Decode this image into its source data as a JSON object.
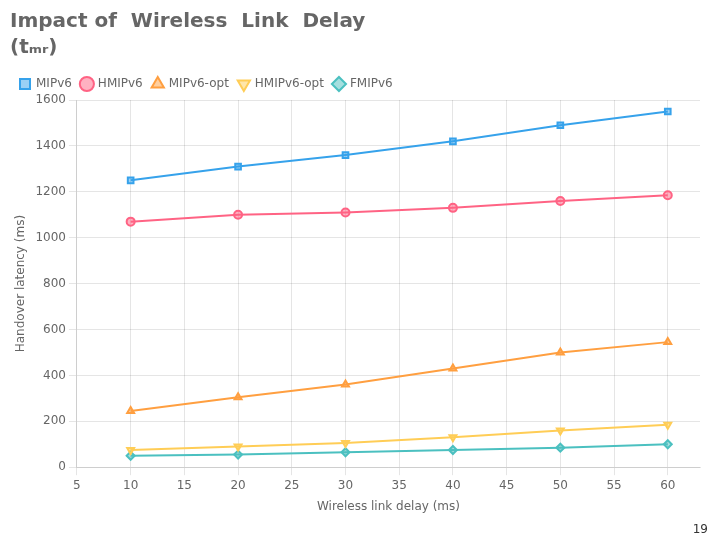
{
  "chart_data": {
    "type": "line",
    "title": "Impact of  Wireless  Link  Delay",
    "subtitle": "(tₘᵣ)",
    "xlabel": "Wireless link delay (ms)",
    "ylabel": "Handover latency (ms)",
    "x": [
      10,
      20,
      30,
      40,
      50,
      60
    ],
    "series": [
      {
        "name": "MIPv6",
        "values": [
          1250,
          1310,
          1360,
          1420,
          1490,
          1550
        ],
        "marker": "square"
      },
      {
        "name": "HMIPv6",
        "values": [
          1070,
          1100,
          1110,
          1130,
          1160,
          1185
        ],
        "marker": "circle"
      },
      {
        "name": "MIPv6-opt",
        "values": [
          245,
          305,
          360,
          430,
          500,
          545
        ],
        "marker": "triangle-up"
      },
      {
        "name": "HMIPv6-opt",
        "values": [
          75,
          90,
          105,
          130,
          160,
          185
        ],
        "marker": "triangle-down"
      },
      {
        "name": "FMIPv6",
        "values": [
          50,
          55,
          65,
          75,
          85,
          100
        ],
        "marker": "diamond"
      }
    ],
    "xlim": [
      5,
      63
    ],
    "ylim": [
      0,
      1600
    ],
    "xticks": [
      5,
      10,
      15,
      20,
      25,
      30,
      35,
      40,
      45,
      50,
      55,
      60
    ],
    "yticks": [
      0,
      200,
      400,
      600,
      800,
      1000,
      1200,
      1400,
      1600
    ],
    "grid": true,
    "legend": "upper left",
    "annotations": [
      "19"
    ]
  }
}
